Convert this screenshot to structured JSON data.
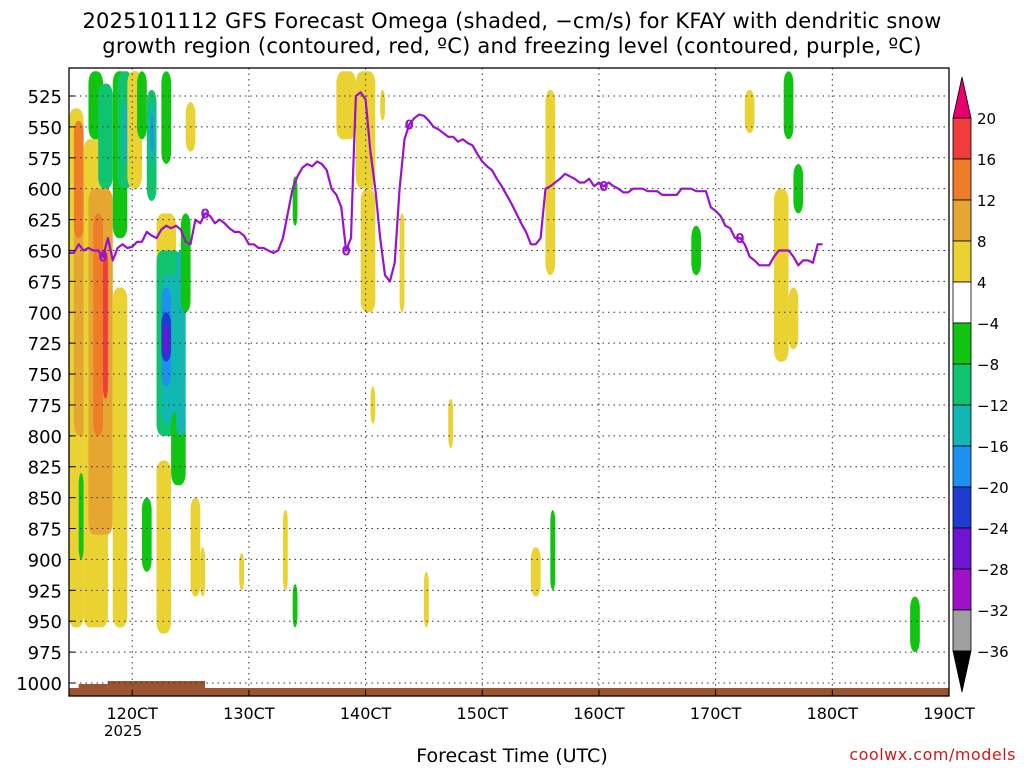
{
  "title_line1": "2025101112 GFS Forecast Omega (shaded, −cm/s) for KFAY with dendritic snow",
  "title_line2": "growth region (contoured, red, ºC) and freezing level (contoured, purple, ºC)",
  "xlabel": "Forecast Time (UTC)",
  "year_label": "2025",
  "credit": "coolwx.com/models",
  "chart_data": {
    "type": "heatmap",
    "y_axis": {
      "label": "",
      "ticks": [
        525,
        550,
        575,
        600,
        625,
        650,
        675,
        700,
        725,
        750,
        775,
        800,
        825,
        850,
        875,
        900,
        925,
        950,
        975,
        1000
      ],
      "range": [
        1010,
        505
      ],
      "unit": "hPa"
    },
    "x_axis": {
      "ticks": [
        "120CT",
        "130CT",
        "140CT",
        "150CT",
        "160CT",
        "170CT",
        "180CT",
        "190CT"
      ],
      "range_hours": [
        -13,
        168
      ]
    },
    "grid": true,
    "colorbar": {
      "labels": [
        "20",
        "16",
        "12",
        "8",
        "4",
        "−4",
        "−8",
        "−12",
        "−16",
        "−20",
        "−24",
        "−28",
        "−32",
        "−36"
      ],
      "bins": [
        {
          "color": "#e8006e"
        },
        {
          "color": "#f03c3c"
        },
        {
          "color": "#ef7d28"
        },
        {
          "color": "#e6a632"
        },
        {
          "color": "#e9d232"
        },
        {
          "color": "#ffffff"
        },
        {
          "color": "#12c412"
        },
        {
          "color": "#10c36e"
        },
        {
          "color": "#12b7b4"
        },
        {
          "color": "#1e90f0"
        },
        {
          "color": "#1e3cd2"
        },
        {
          "color": "#6e14d2"
        },
        {
          "color": "#a010c8"
        },
        {
          "color": "#a0a0a0"
        },
        {
          "color": "#000000"
        }
      ]
    },
    "freezing_level_label": "0",
    "freezing_level": [
      [
        -13,
        652
      ],
      [
        -12,
        652
      ],
      [
        -11,
        645
      ],
      [
        -10,
        650
      ],
      [
        -9,
        648
      ],
      [
        -8,
        650
      ],
      [
        -7,
        650
      ],
      [
        -6,
        655
      ],
      [
        -5,
        640
      ],
      [
        -4,
        658
      ],
      [
        -3,
        648
      ],
      [
        -2,
        645
      ],
      [
        -1,
        648
      ],
      [
        0,
        647
      ],
      [
        1,
        643
      ],
      [
        2,
        643
      ],
      [
        3,
        635
      ],
      [
        4,
        638
      ],
      [
        5,
        640
      ],
      [
        6,
        633
      ],
      [
        7,
        630
      ],
      [
        8,
        632
      ],
      [
        9,
        630
      ],
      [
        10,
        633
      ],
      [
        11,
        643
      ],
      [
        12,
        645
      ],
      [
        13,
        625
      ],
      [
        14,
        628
      ],
      [
        15,
        620
      ],
      [
        16,
        622
      ],
      [
        17,
        628
      ],
      [
        18,
        625
      ],
      [
        19,
        628
      ],
      [
        20,
        632
      ],
      [
        21,
        635
      ],
      [
        22,
        635
      ],
      [
        23,
        638
      ],
      [
        24,
        645
      ],
      [
        25,
        645
      ],
      [
        26,
        648
      ],
      [
        27,
        648
      ],
      [
        28,
        650
      ],
      [
        29,
        652
      ],
      [
        30,
        650
      ],
      [
        31,
        640
      ],
      [
        32,
        620
      ],
      [
        33,
        600
      ],
      [
        34,
        590
      ],
      [
        35,
        583
      ],
      [
        36,
        580
      ],
      [
        37,
        582
      ],
      [
        38,
        578
      ],
      [
        39,
        580
      ],
      [
        40,
        585
      ],
      [
        41,
        600
      ],
      [
        42,
        605
      ],
      [
        43,
        615
      ],
      [
        44,
        650
      ],
      [
        45,
        640
      ],
      [
        45.5,
        580
      ],
      [
        46,
        525
      ],
      [
        47,
        522
      ],
      [
        48,
        528
      ],
      [
        49,
        570
      ],
      [
        50,
        600
      ],
      [
        51,
        640
      ],
      [
        52,
        670
      ],
      [
        53,
        675
      ],
      [
        54,
        660
      ],
      [
        55,
        600
      ],
      [
        56,
        560
      ],
      [
        57,
        548
      ],
      [
        58,
        543
      ],
      [
        59,
        540
      ],
      [
        60,
        541
      ],
      [
        61,
        545
      ],
      [
        62,
        550
      ],
      [
        63,
        552
      ],
      [
        64,
        555
      ],
      [
        65,
        558
      ],
      [
        66,
        558
      ],
      [
        67,
        562
      ],
      [
        68,
        560
      ],
      [
        69,
        563
      ],
      [
        70,
        565
      ],
      [
        71,
        572
      ],
      [
        72,
        578
      ],
      [
        73,
        582
      ],
      [
        74,
        585
      ],
      [
        75,
        592
      ],
      [
        76,
        598
      ],
      [
        77,
        605
      ],
      [
        78,
        612
      ],
      [
        79,
        620
      ],
      [
        80,
        628
      ],
      [
        81,
        635
      ],
      [
        82,
        645
      ],
      [
        83,
        645
      ],
      [
        84,
        640
      ],
      [
        85,
        600
      ],
      [
        86,
        598
      ],
      [
        87,
        595
      ],
      [
        88,
        592
      ],
      [
        89,
        588
      ],
      [
        90,
        590
      ],
      [
        91,
        592
      ],
      [
        92,
        595
      ],
      [
        93,
        595
      ],
      [
        94,
        592
      ],
      [
        95,
        598
      ],
      [
        96,
        595
      ],
      [
        97,
        598
      ],
      [
        98,
        595
      ],
      [
        99,
        598
      ],
      [
        100,
        600
      ],
      [
        101,
        603
      ],
      [
        102,
        603
      ],
      [
        103,
        600
      ],
      [
        104,
        600
      ],
      [
        105,
        600
      ],
      [
        106,
        602
      ],
      [
        107,
        602
      ],
      [
        108,
        602
      ],
      [
        109,
        605
      ],
      [
        110,
        605
      ],
      [
        111,
        605
      ],
      [
        112,
        605
      ],
      [
        113,
        600
      ],
      [
        114,
        600
      ],
      [
        115,
        600
      ],
      [
        116,
        602
      ],
      [
        117,
        602
      ],
      [
        118,
        602
      ],
      [
        119,
        615
      ],
      [
        120,
        618
      ],
      [
        121,
        622
      ],
      [
        122,
        630
      ],
      [
        123,
        632
      ],
      [
        124,
        640
      ],
      [
        125,
        640
      ],
      [
        126,
        645
      ],
      [
        127,
        655
      ],
      [
        128,
        658
      ],
      [
        129,
        662
      ],
      [
        130,
        662
      ],
      [
        131,
        662
      ],
      [
        132,
        655
      ],
      [
        133,
        650
      ],
      [
        134,
        650
      ],
      [
        135,
        650
      ],
      [
        136,
        655
      ],
      [
        137,
        662
      ],
      [
        138,
        658
      ],
      [
        139,
        658
      ],
      [
        140,
        660
      ],
      [
        141,
        645
      ],
      [
        142,
        645
      ]
    ],
    "freezing_level_label_at_hours": [
      -6,
      15,
      44,
      57,
      97,
      125
    ],
    "omega_regions": [
      {
        "color": "#e9d232",
        "t0": -13,
        "t1": -10,
        "p0": 535,
        "p1": 955
      },
      {
        "color": "#e6a632",
        "t0": -12,
        "t1": -9,
        "p0": 600,
        "p1": 800
      },
      {
        "color": "#ef7d28",
        "t0": -12,
        "t1": -10,
        "p0": 545,
        "p1": 640
      },
      {
        "color": "#e9d232",
        "t0": -10,
        "t1": -5,
        "p0": 560,
        "p1": 955
      },
      {
        "color": "#e6a632",
        "t0": -9,
        "t1": -4,
        "p0": 600,
        "p1": 880
      },
      {
        "color": "#ef7d28",
        "t0": -8,
        "t1": -6,
        "p0": 620,
        "p1": 800
      },
      {
        "color": "#f03c3c",
        "t0": -6,
        "t1": -5,
        "p0": 650,
        "p1": 770
      },
      {
        "color": "#12c412",
        "t0": -9,
        "t1": -6,
        "p0": 505,
        "p1": 560
      },
      {
        "color": "#10c36e",
        "t0": -7,
        "t1": -4,
        "p0": 515,
        "p1": 600
      },
      {
        "color": "#12c412",
        "t0": -11,
        "t1": -10,
        "p0": 830,
        "p1": 900
      },
      {
        "color": "#e9d232",
        "t0": -4,
        "t1": -1,
        "p0": 680,
        "p1": 955
      },
      {
        "color": "#12c412",
        "t0": -4,
        "t1": -1,
        "p0": 505,
        "p1": 640
      },
      {
        "color": "#10c36e",
        "t0": -3,
        "t1": 0,
        "p0": 505,
        "p1": 600
      },
      {
        "color": "#12b7b4",
        "t0": -2,
        "t1": 0,
        "p0": 530,
        "p1": 580
      },
      {
        "color": "#e9d232",
        "t0": -1,
        "t1": 2,
        "p0": 505,
        "p1": 600
      },
      {
        "color": "#12c412",
        "t0": 1,
        "t1": 3,
        "p0": 505,
        "p1": 560
      },
      {
        "color": "#10c36e",
        "t0": 3,
        "t1": 5,
        "p0": 520,
        "p1": 610
      },
      {
        "color": "#12b7b4",
        "t0": 3.5,
        "t1": 4.5,
        "p0": 530,
        "p1": 580
      },
      {
        "color": "#1e90f0",
        "t0": 3.8,
        "t1": 4.4,
        "p0": 540,
        "p1": 570
      },
      {
        "color": "#12c412",
        "t0": 2,
        "t1": 4,
        "p0": 850,
        "p1": 910
      },
      {
        "color": "#e9d232",
        "t0": 5,
        "t1": 9,
        "p0": 620,
        "p1": 740
      },
      {
        "color": "#12c412",
        "t0": 6,
        "t1": 8,
        "p0": 505,
        "p1": 580
      },
      {
        "color": "#10c36e",
        "t0": 5,
        "t1": 10,
        "p0": 650,
        "p1": 800
      },
      {
        "color": "#12b7b4",
        "t0": 6,
        "t1": 10,
        "p0": 670,
        "p1": 790
      },
      {
        "color": "#1e90f0",
        "t0": 6,
        "t1": 8,
        "p0": 680,
        "p1": 760
      },
      {
        "color": "#1e3cd2",
        "t0": 6,
        "t1": 8,
        "p0": 700,
        "p1": 740
      },
      {
        "color": "#6e14d2",
        "t0": 6.5,
        "t1": 7.5,
        "p0": 710,
        "p1": 735
      },
      {
        "color": "#12c412",
        "t0": 8,
        "t1": 11,
        "p0": 780,
        "p1": 840
      },
      {
        "color": "#12b7b4",
        "t0": 9,
        "t1": 11,
        "p0": 650,
        "p1": 800
      },
      {
        "color": "#e6a632",
        "t0": 5,
        "t1": 7,
        "p0": 860,
        "p1": 930
      },
      {
        "color": "#e9d232",
        "t0": 5,
        "t1": 8,
        "p0": 820,
        "p1": 960
      },
      {
        "color": "#12c412",
        "t0": 10,
        "t1": 12,
        "p0": 620,
        "p1": 700
      },
      {
        "color": "#e9d232",
        "t0": 11,
        "t1": 13,
        "p0": 530,
        "p1": 570
      },
      {
        "color": "#e9d232",
        "t0": 12,
        "t1": 14,
        "p0": 850,
        "p1": 930
      },
      {
        "color": "#e9d232",
        "t0": 14,
        "t1": 15,
        "p0": 890,
        "p1": 930
      },
      {
        "color": "#e9d232",
        "t0": 22,
        "t1": 23,
        "p0": 895,
        "p1": 925
      },
      {
        "color": "#e9d232",
        "t0": 31,
        "t1": 32,
        "p0": 860,
        "p1": 925
      },
      {
        "color": "#12c412",
        "t0": 33,
        "t1": 34,
        "p0": 590,
        "p1": 630
      },
      {
        "color": "#12c412",
        "t0": 33,
        "t1": 34,
        "p0": 920,
        "p1": 955
      },
      {
        "color": "#e9d232",
        "t0": 42,
        "t1": 46,
        "p0": 505,
        "p1": 560
      },
      {
        "color": "#e9d232",
        "t0": 46,
        "t1": 50,
        "p0": 505,
        "p1": 600
      },
      {
        "color": "#e9d232",
        "t0": 47,
        "t1": 50,
        "p0": 600,
        "p1": 700
      },
      {
        "color": "#e9d232",
        "t0": 51,
        "t1": 52,
        "p0": 520,
        "p1": 545
      },
      {
        "color": "#e9d232",
        "t0": 55,
        "t1": 56,
        "p0": 620,
        "p1": 700
      },
      {
        "color": "#e9d232",
        "t0": 49,
        "t1": 50,
        "p0": 760,
        "p1": 790
      },
      {
        "color": "#e9d232",
        "t0": 65,
        "t1": 66,
        "p0": 770,
        "p1": 810
      },
      {
        "color": "#e9d232",
        "t0": 60,
        "t1": 61,
        "p0": 910,
        "p1": 955
      },
      {
        "color": "#e9d232",
        "t0": 85,
        "t1": 87,
        "p0": 520,
        "p1": 670
      },
      {
        "color": "#e9d232",
        "t0": 82,
        "t1": 84,
        "p0": 890,
        "p1": 930
      },
      {
        "color": "#12c412",
        "t0": 86,
        "t1": 87,
        "p0": 860,
        "p1": 925
      },
      {
        "color": "#12c412",
        "t0": 115,
        "t1": 117,
        "p0": 630,
        "p1": 670
      },
      {
        "color": "#e9d232",
        "t0": 126,
        "t1": 128,
        "p0": 520,
        "p1": 555
      },
      {
        "color": "#e9d232",
        "t0": 132,
        "t1": 135,
        "p0": 600,
        "p1": 740
      },
      {
        "color": "#e9d232",
        "t0": 135,
        "t1": 137,
        "p0": 680,
        "p1": 730
      },
      {
        "color": "#12c412",
        "t0": 134,
        "t1": 136,
        "p0": 505,
        "p1": 560
      },
      {
        "color": "#12c412",
        "t0": 136,
        "t1": 138,
        "p0": 580,
        "p1": 620
      },
      {
        "color": "#12c412",
        "t0": 160,
        "t1": 162,
        "p0": 930,
        "p1": 975
      }
    ],
    "ground_terrain_color": "#9a5530"
  }
}
